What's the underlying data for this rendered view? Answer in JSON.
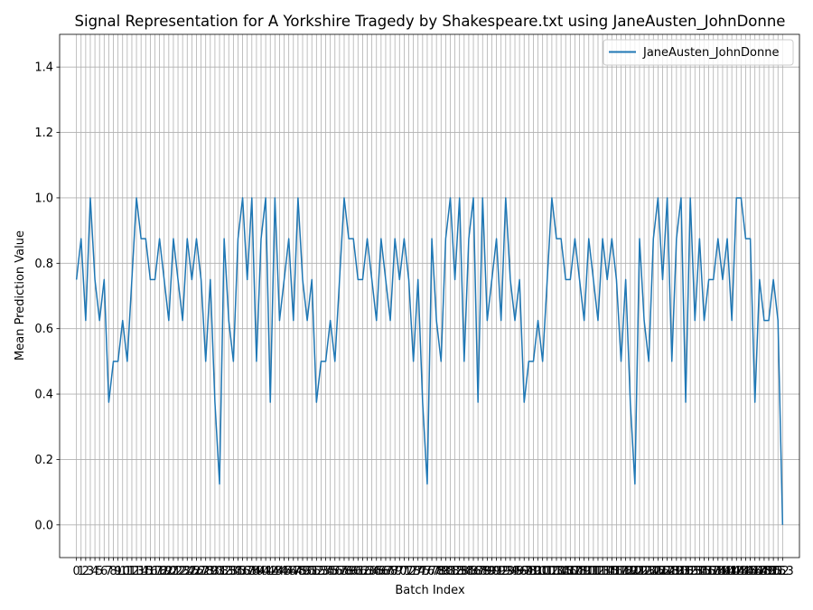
{
  "chart_data": {
    "type": "line",
    "title": "Signal Representation for A Yorkshire Tragedy by Shakespeare.txt using JaneAusten_JohnDonne",
    "xlabel": "Batch Index",
    "ylabel": "Mean Prediction Value",
    "xlim": [
      -3.65,
      156.65
    ],
    "ylim": [
      -0.1,
      1.5
    ],
    "yticks": [
      0.0,
      0.2,
      0.4,
      0.6,
      0.8,
      1.0,
      1.2,
      1.4
    ],
    "xticks_all_integers": [
      0,
      153
    ],
    "grid": true,
    "legend": "top-right",
    "color": "#1f77b4",
    "series": [
      {
        "name": "JaneAusten_JohnDonne",
        "x_start": 0,
        "values": [
          0.75,
          0.875,
          0.625,
          1.0,
          0.75,
          0.625,
          0.75,
          0.375,
          0.5,
          0.5,
          0.625,
          0.5,
          0.75,
          1.0,
          0.875,
          0.875,
          0.75,
          0.75,
          0.875,
          0.75,
          0.625,
          0.875,
          0.75,
          0.625,
          0.875,
          0.75,
          0.875,
          0.75,
          0.5,
          0.75,
          0.375,
          0.125,
          0.875,
          0.625,
          0.5,
          0.875,
          1.0,
          0.75,
          1.0,
          0.5,
          0.875,
          1.0,
          0.375,
          1.0,
          0.625,
          0.75,
          0.875,
          0.625,
          1.0,
          0.75,
          0.625,
          0.75,
          0.375,
          0.5,
          0.5,
          0.625,
          0.5,
          0.75,
          1.0,
          0.875,
          0.875,
          0.75,
          0.75,
          0.875,
          0.75,
          0.625,
          0.875,
          0.75,
          0.625,
          0.875,
          0.75,
          0.875,
          0.75,
          0.5,
          0.75,
          0.375,
          0.125,
          0.875,
          0.625,
          0.5,
          0.875,
          1.0,
          0.75,
          1.0,
          0.5,
          0.875,
          1.0,
          0.375,
          1.0,
          0.625,
          0.75,
          0.875,
          0.625,
          1.0,
          0.75,
          0.625,
          0.75,
          0.375,
          0.5,
          0.5,
          0.625,
          0.5,
          0.75,
          1.0,
          0.875,
          0.875,
          0.75,
          0.75,
          0.875,
          0.75,
          0.625,
          0.875,
          0.75,
          0.625,
          0.875,
          0.75,
          0.875,
          0.75,
          0.5,
          0.75,
          0.375,
          0.125,
          0.875,
          0.625,
          0.5,
          0.875,
          1.0,
          0.75,
          1.0,
          0.5,
          0.875,
          1.0,
          0.375,
          1.0,
          0.625,
          0.875,
          0.625,
          0.75,
          0.75,
          0.875,
          0.75,
          0.875,
          0.625,
          1.0,
          1.0,
          0.875,
          0.875,
          0.375,
          0.75,
          0.625,
          0.625,
          0.75,
          0.625,
          0.0
        ]
      }
    ]
  }
}
